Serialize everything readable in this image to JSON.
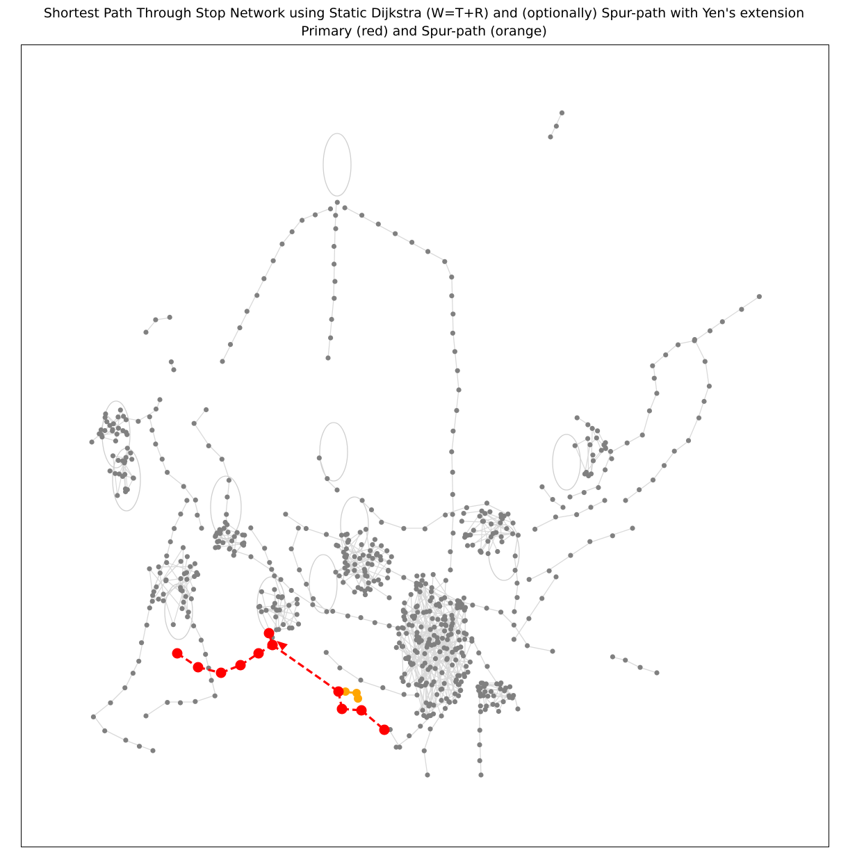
{
  "figure": {
    "title": "Shortest Path Through Stop Network using Static Dijkstra (W=T+R) and (optionally) Spur-path with Yen's extension",
    "subtitle": "Primary (red) and Spur-path (orange)"
  },
  "colors": {
    "edge": "#d9d9d9",
    "node": "#808080",
    "primary_path": "#ff0000",
    "spur_path": "#ffa500",
    "frame": "#000000"
  },
  "legend_note": {
    "primary": "red",
    "spur": "orange"
  }
}
